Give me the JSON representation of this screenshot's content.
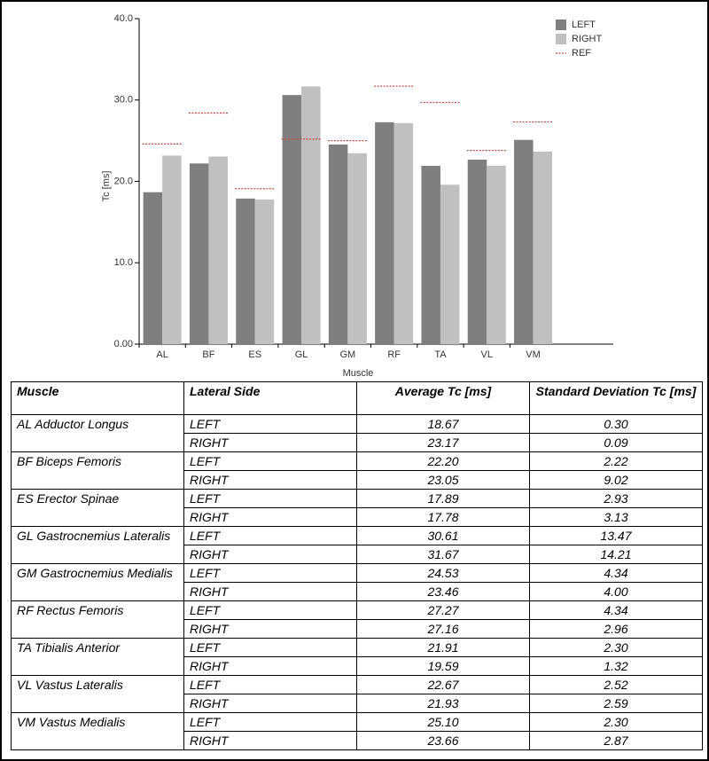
{
  "chart_data": {
    "type": "bar",
    "x_label": "Muscle",
    "y_label": "Tc [ms]",
    "categories": [
      "AL",
      "BF",
      "ES",
      "GL",
      "GM",
      "RF",
      "TA",
      "VL",
      "VM"
    ],
    "series": [
      {
        "name": "LEFT",
        "color": "#7f7f7f",
        "style": "bar",
        "values": [
          18.67,
          22.2,
          17.89,
          30.61,
          24.53,
          27.27,
          21.91,
          22.67,
          25.1
        ]
      },
      {
        "name": "RIGHT",
        "color": "#c0c0c0",
        "style": "bar",
        "values": [
          23.17,
          23.05,
          17.78,
          31.67,
          23.46,
          27.16,
          19.59,
          21.93,
          23.66
        ]
      },
      {
        "name": "REF",
        "color": "#c0504d",
        "style": "dotted-line",
        "values": [
          24.6,
          28.4,
          19.1,
          25.2,
          25.0,
          31.7,
          29.7,
          23.8,
          27.3
        ]
      }
    ],
    "ylim": [
      0,
      40
    ],
    "yticks": [
      {
        "value": 0,
        "label": "0.00"
      },
      {
        "value": 10,
        "label": "10.0"
      },
      {
        "value": 20,
        "label": "20.0"
      },
      {
        "value": 30,
        "label": "30.0"
      },
      {
        "value": 40,
        "label": "40.0"
      }
    ],
    "grid": false,
    "legend": "top-right"
  },
  "table": {
    "columns": [
      "Muscle",
      "Lateral Side",
      "Average Tc [ms]",
      "Standard Deviation Tc [ms]"
    ],
    "groups": [
      {
        "muscle": "AL Adductor Longus",
        "rows": [
          [
            "LEFT",
            "18.67",
            "0.30"
          ],
          [
            "RIGHT",
            "23.17",
            "0.09"
          ]
        ]
      },
      {
        "muscle": "BF Biceps Femoris",
        "rows": [
          [
            "LEFT",
            "22.20",
            "2.22"
          ],
          [
            "RIGHT",
            "23.05",
            "9.02"
          ]
        ]
      },
      {
        "muscle": "ES Erector Spinae",
        "rows": [
          [
            "LEFT",
            "17.89",
            "2.93"
          ],
          [
            "RIGHT",
            "17.78",
            "3.13"
          ]
        ]
      },
      {
        "muscle": "GL Gastrocnemius Lateralis",
        "rows": [
          [
            "LEFT",
            "30.61",
            "13.47"
          ],
          [
            "RIGHT",
            "31.67",
            "14.21"
          ]
        ]
      },
      {
        "muscle": "GM Gastrocnemius Medialis",
        "rows": [
          [
            "LEFT",
            "24.53",
            "4.34"
          ],
          [
            "RIGHT",
            "23.46",
            "4.00"
          ]
        ]
      },
      {
        "muscle": "RF Rectus Femoris",
        "rows": [
          [
            "LEFT",
            "27.27",
            "4.34"
          ],
          [
            "RIGHT",
            "27.16",
            "2.96"
          ]
        ]
      },
      {
        "muscle": "TA Tibialis Anterior",
        "rows": [
          [
            "LEFT",
            "21.91",
            "2.30"
          ],
          [
            "RIGHT",
            "19.59",
            "1.32"
          ]
        ]
      },
      {
        "muscle": "VL Vastus Lateralis",
        "rows": [
          [
            "LEFT",
            "22.67",
            "2.52"
          ],
          [
            "RIGHT",
            "21.93",
            "2.59"
          ]
        ]
      },
      {
        "muscle": "VM Vastus Medialis",
        "rows": [
          [
            "LEFT",
            "25.10",
            "2.30"
          ],
          [
            "RIGHT",
            "23.66",
            "2.87"
          ]
        ]
      }
    ]
  }
}
